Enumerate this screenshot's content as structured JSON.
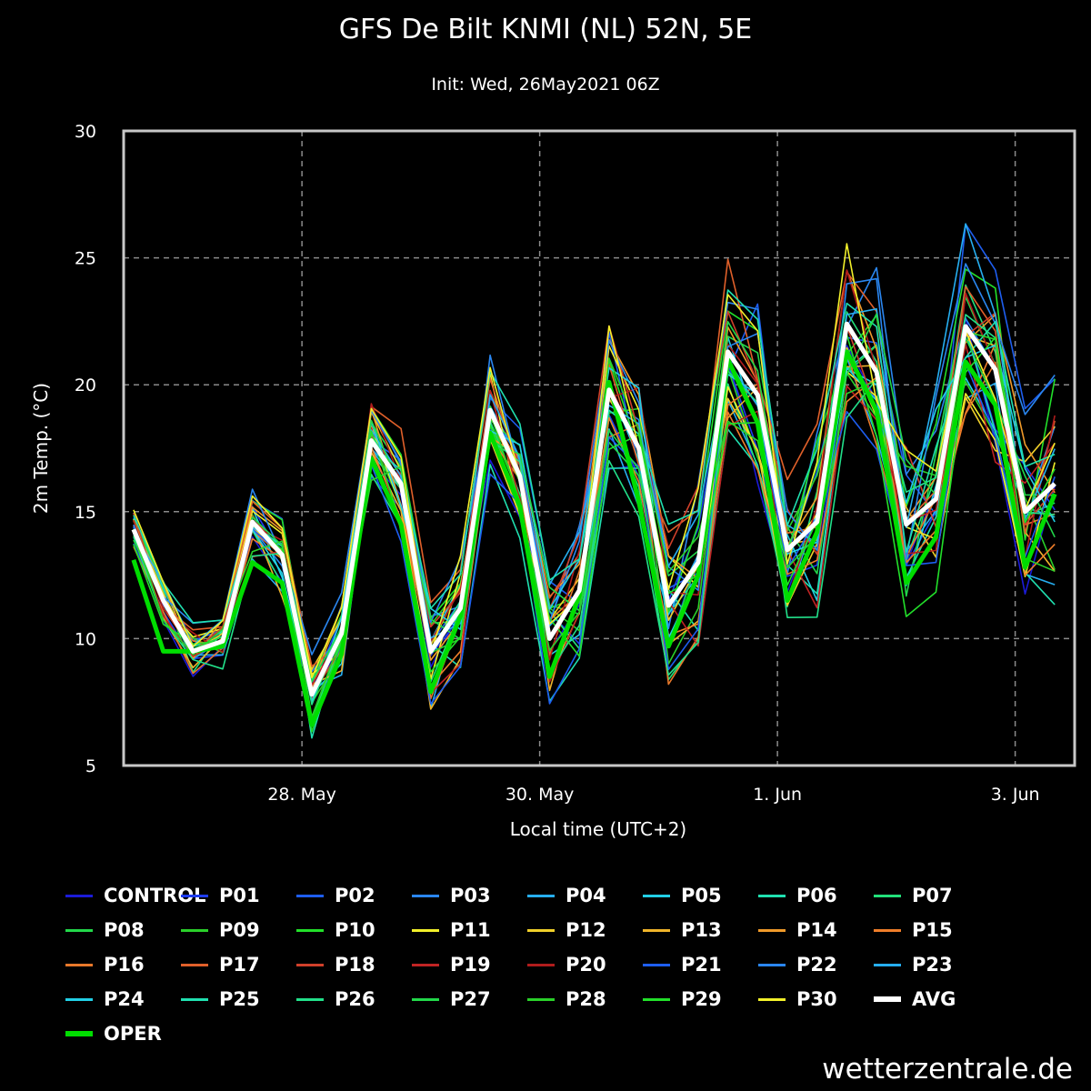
{
  "chart_data": {
    "type": "line",
    "title": "GFS De Bilt KNMI (NL) 52N, 5E",
    "subtitle": "Init: Wed, 26May2021 06Z",
    "xlabel": "Local time (UTC+2)",
    "ylabel": "2m Temp. (°C)",
    "ylim": [
      5,
      30
    ],
    "yticks": [
      "5",
      "10",
      "15",
      "20",
      "25",
      "30"
    ],
    "xlim": [
      0,
      96
    ],
    "xticks": [
      {
        "value": 18,
        "label": "28. May"
      },
      {
        "value": 42,
        "label": "30. May"
      },
      {
        "value": 66,
        "label": "1. Jun"
      },
      {
        "value": 90,
        "label": "3. Jun"
      }
    ],
    "grid": true,
    "x": [
      1,
      4,
      7,
      10,
      13,
      16,
      19,
      22,
      25,
      28,
      31,
      34,
      37,
      40,
      43,
      46,
      49,
      52,
      55,
      58,
      61,
      64,
      67,
      70,
      73,
      76,
      79,
      82,
      85,
      88,
      91,
      94
    ],
    "series": [
      {
        "name": "AVG",
        "color": "#ffffff",
        "width": 5,
        "values": [
          14.3,
          11.5,
          9.5,
          9.9,
          14.6,
          13.3,
          7.8,
          10.2,
          17.8,
          16.1,
          9.5,
          11.2,
          19.0,
          16.4,
          10.0,
          11.9,
          19.8,
          17.5,
          11.3,
          13.0,
          21.3,
          19.6,
          13.5,
          14.6,
          22.4,
          20.5,
          14.5,
          15.5,
          22.3,
          20.6,
          15.0,
          16.1
        ]
      },
      {
        "name": "OPER",
        "color": "#00dd00",
        "width": 5,
        "values": [
          13.1,
          9.5,
          9.5,
          9.7,
          13.0,
          12.2,
          6.6,
          9.4,
          17.1,
          14.5,
          7.9,
          10.9,
          18.1,
          15.2,
          8.5,
          11.7,
          20.1,
          15.4,
          9.7,
          12.5,
          21.0,
          18.5,
          11.5,
          14.2,
          21.3,
          19.0,
          12.2,
          14.0,
          20.9,
          19.2,
          12.8,
          15.7
        ]
      }
    ],
    "legend": [
      {
        "name": "CONTROL",
        "color": "#1b1bd8"
      },
      {
        "name": "P01",
        "color": "#1e3cf0"
      },
      {
        "name": "P02",
        "color": "#1e5ef0"
      },
      {
        "name": "P03",
        "color": "#2a86f0"
      },
      {
        "name": "P04",
        "color": "#26aef0"
      },
      {
        "name": "P05",
        "color": "#22cfe6"
      },
      {
        "name": "P06",
        "color": "#20e0b0"
      },
      {
        "name": "P07",
        "color": "#22e07a"
      },
      {
        "name": "P08",
        "color": "#22d84a"
      },
      {
        "name": "P09",
        "color": "#2ad02a"
      },
      {
        "name": "P10",
        "color": "#22e02a"
      },
      {
        "name": "P11",
        "color": "#f2f02a"
      },
      {
        "name": "P12",
        "color": "#f0d02a"
      },
      {
        "name": "P13",
        "color": "#f0b42a"
      },
      {
        "name": "P14",
        "color": "#f09a2a"
      },
      {
        "name": "P15",
        "color": "#f07e2a"
      },
      {
        "name": "P16",
        "color": "#e8782a"
      },
      {
        "name": "P17",
        "color": "#e0602a"
      },
      {
        "name": "P18",
        "color": "#d0402a"
      },
      {
        "name": "P19",
        "color": "#c02424"
      },
      {
        "name": "P20",
        "color": "#b01c1c"
      },
      {
        "name": "P21",
        "color": "#1e5ef0"
      },
      {
        "name": "P22",
        "color": "#2a86f0"
      },
      {
        "name": "P23",
        "color": "#26aef0"
      },
      {
        "name": "P24",
        "color": "#22cfe6"
      },
      {
        "name": "P25",
        "color": "#20e0b0"
      },
      {
        "name": "P26",
        "color": "#22e08a"
      },
      {
        "name": "P27",
        "color": "#22d84a"
      },
      {
        "name": "P28",
        "color": "#2ad02a"
      },
      {
        "name": "P29",
        "color": "#22e02a"
      },
      {
        "name": "P30",
        "color": "#f2f02a"
      },
      {
        "name": "AVG",
        "color": "#ffffff"
      },
      {
        "name": "OPER",
        "color": "#00dd00"
      }
    ]
  },
  "watermark": "wetterzentrale.de"
}
